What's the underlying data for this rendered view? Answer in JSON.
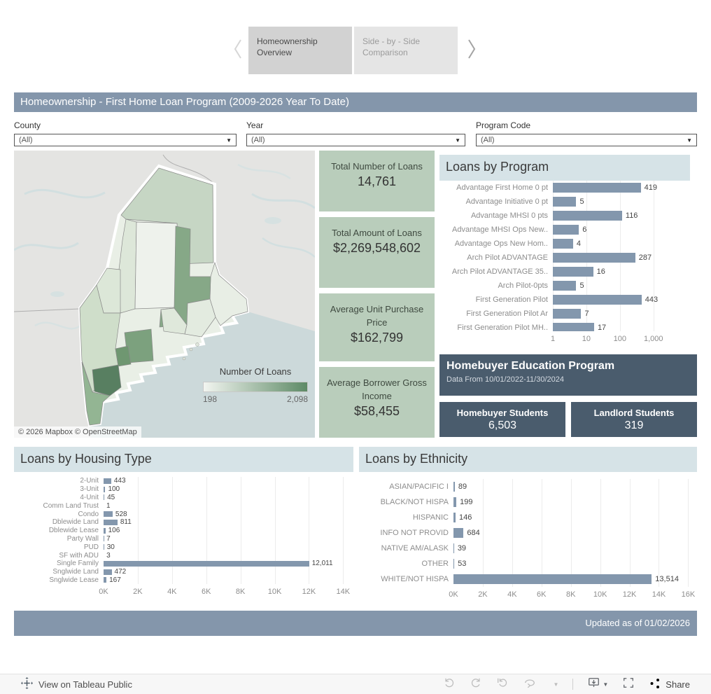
{
  "tabs": {
    "items": [
      {
        "label": "Homeownership Overview",
        "active": true
      },
      {
        "label": "Side - by - Side Comparison",
        "active": false
      }
    ]
  },
  "header": {
    "title": "Homeownership - First Home Loan Program (2009-2026 Year To Date)"
  },
  "filters": [
    {
      "label": "County",
      "value": "(All)"
    },
    {
      "label": "Year",
      "value": "(All)"
    },
    {
      "label": "Program Code",
      "value": "(All)"
    }
  ],
  "map": {
    "legend_title": "Number Of Loans",
    "legend_min": "198",
    "legend_max": "2,098",
    "attribution": "© 2026 Mapbox © OpenStreetMap",
    "type": "choropleth",
    "region": "Maine counties"
  },
  "kpis": [
    {
      "label": "Total Number of Loans",
      "value": "14,761"
    },
    {
      "label": "Total Amount of Loans",
      "value": "$2,269,548,602"
    },
    {
      "label": "Average Unit Purchase Price",
      "value": "$162,799"
    },
    {
      "label": "Average Borrower Gross Income",
      "value": "$58,455"
    }
  ],
  "education": {
    "title": "Homebuyer Education Program",
    "subtitle": "Data From 10/01/2022-11/30/2024",
    "stats": [
      {
        "label": "Homebuyer Students",
        "value": "6,503"
      },
      {
        "label": "Landlord Students",
        "value": "319"
      }
    ]
  },
  "chart_data": [
    {
      "type": "bar",
      "title": "Loans by Program",
      "orientation": "horizontal",
      "scale": "log",
      "categories": [
        "Advantage First Home 0 pt",
        "Advantage Initiative 0 pt",
        "Advantage MHSI 0 pts",
        "Advantage MHSI Ops New..",
        "Advantage Ops New Hom..",
        "Arch Pilot ADVANTAGE",
        "Arch Pilot ADVANTAGE 35..",
        "Arch Pilot-0pts",
        "First Generation Pilot",
        "First Generation Pilot Ar",
        "First Generation Pilot MH.."
      ],
      "values": [
        419,
        5,
        116,
        6,
        4,
        287,
        16,
        5,
        443,
        7,
        17
      ],
      "ticks": [
        1,
        10,
        100,
        1000
      ],
      "tick_format": "number",
      "axis_max": 19953,
      "edge_line": true,
      "legend_position": "none",
      "grid": true
    },
    {
      "type": "bar",
      "title": "Loans by Housing Type",
      "orientation": "horizontal",
      "scale": "linear",
      "categories": [
        "2-Unit",
        "3-Unit",
        "4-Unit",
        "Comm Land Trust",
        "Condo",
        "Dblewide Land",
        "Dblewide Lease",
        "Party Wall",
        "PUD",
        "SF with ADU",
        "Single Family",
        "Snglwide Land",
        "Snglwide Lease"
      ],
      "values": [
        443,
        100,
        45,
        1,
        528,
        811,
        106,
        7,
        30,
        3,
        12011,
        472,
        167
      ],
      "ticks": [
        0,
        2000,
        4000,
        6000,
        8000,
        10000,
        12000,
        14000
      ],
      "tick_format": "K",
      "axis_max": 14600,
      "edge_line": false,
      "legend_position": "none",
      "grid": true
    },
    {
      "type": "bar",
      "title": "Loans by Ethnicity",
      "orientation": "horizontal",
      "scale": "linear",
      "categories": [
        "ASIAN/PACIFIC I",
        "BLACK/NOT HISPA",
        "HISPANIC",
        "INFO NOT PROVID",
        "NATIVE AM/ALASK",
        "OTHER",
        "WHITE/NOT HISPA"
      ],
      "values": [
        89,
        199,
        146,
        684,
        39,
        53,
        13514
      ],
      "ticks": [
        0,
        2000,
        4000,
        6000,
        8000,
        10000,
        12000,
        14000,
        16000
      ],
      "tick_format": "K",
      "axis_max": 16600,
      "edge_line": false,
      "legend_position": "none",
      "grid": true
    }
  ],
  "footer": {
    "updated": "Updated as of 01/02/2026"
  },
  "toolbar": {
    "view_label": "View on Tableau Public",
    "share_label": "Share",
    "icons": [
      "tableau-logo-icon",
      "undo-icon",
      "redo-icon",
      "reset-icon",
      "refresh-icon",
      "caret-down-icon",
      "download-icon",
      "fullscreen-icon",
      "share-icon"
    ]
  },
  "colors": {
    "header_bar": "#8496ab",
    "kpi_card": "#b9cdbb",
    "section_header": "#d6e3e7",
    "dark_panel": "#4a5c6d",
    "bar": "#8397ad",
    "legend_min_color": "#f2f5f0",
    "legend_max_color": "#5d8a66"
  }
}
